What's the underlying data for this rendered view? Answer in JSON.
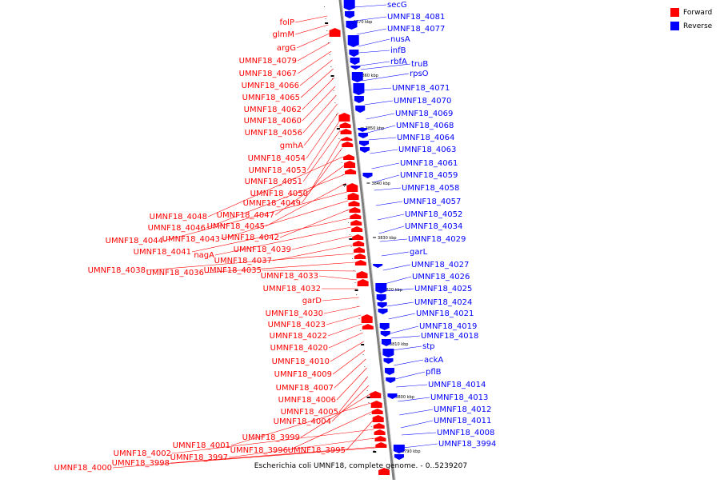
{
  "caption": "Escherichia coli UMNF18, complete genome. - 0..5239207",
  "legend": [
    {
      "label": "Forward",
      "color": "#ff0000"
    },
    {
      "label": "Reverse",
      "color": "#0000ff"
    }
  ],
  "colors": {
    "forward": "#ff0000",
    "reverse": "#0000ff",
    "axis": "#808080",
    "leader_forward": "#ff0000",
    "leader_reverse": "#0000ff"
  },
  "scale_labels": [
    "3870 kbp",
    "3860 kbp",
    "3850 kbp",
    "3840 kbp",
    "3830 kbp",
    "3820 kbp",
    "3810 kbp",
    "3800 kbp",
    "3790 kbp"
  ],
  "forward_genes": [
    "folP",
    "glmM",
    "argG",
    "UMNF18_4079",
    "UMNF18_4067",
    "UMNF18_4066",
    "UMNF18_4065",
    "UMNF18_4062",
    "UMNF18_4060",
    "UMNF18_4056",
    "gmhA",
    "UMNF18_4054",
    "UMNF18_4053",
    "UMNF18_4051",
    "UMNF18_4050",
    "UMNF18_4049",
    "UMNF18_4048",
    "UMNF18_4047",
    "UMNF18_4046",
    "UMNF18_4045",
    "UMNF18_4044",
    "UMNF18_4043",
    "UMNF18_4042",
    "UMNF18_4041",
    "nagA",
    "UMNF18_4039",
    "UMNF18_4037",
    "UMNF18_4038",
    "UMNF18_4036",
    "UMNF18_4035",
    "UMNF18_4033",
    "UMNF18_4032",
    "garD",
    "UMNF18_4030",
    "UMNF18_4023",
    "UMNF18_4022",
    "UMNF18_4020",
    "UMNF18_4010",
    "UMNF18_4009",
    "UMNF18_4007",
    "UMNF18_4006",
    "UMNF18_4005",
    "UMNF18_4004",
    "UMNF18_3999",
    "UMNF18_4001",
    "UMNF18_3996",
    "UMNF18_3995",
    "UMNF18_4002",
    "UMNF18_3997",
    "UMNF18_3998",
    "UMNF18_4000"
  ],
  "reverse_genes": [
    "secG",
    "UMNF18_4081",
    "UMNF18_4077",
    "nusA",
    "infB",
    "rbfA",
    "truB",
    "rpsO",
    "UMNF18_4071",
    "UMNF18_4070",
    "UMNF18_4069",
    "UMNF18_4068",
    "UMNF18_4064",
    "UMNF18_4063",
    "UMNF18_4061",
    "UMNF18_4059",
    "UMNF18_4058",
    "UMNF18_4057",
    "UMNF18_4052",
    "UMNF18_4034",
    "UMNF18_4029",
    "garL",
    "UMNF18_4027",
    "UMNF18_4026",
    "UMNF18_4025",
    "UMNF18_4024",
    "UMNF18_4021",
    "UMNF18_4019",
    "UMNF18_4018",
    "stp",
    "ackA",
    "pflB",
    "UMNF18_4014",
    "UMNF18_4013",
    "UMNF18_4012",
    "UMNF18_4011",
    "UMNF18_4008",
    "UMNF18_3994"
  ]
}
